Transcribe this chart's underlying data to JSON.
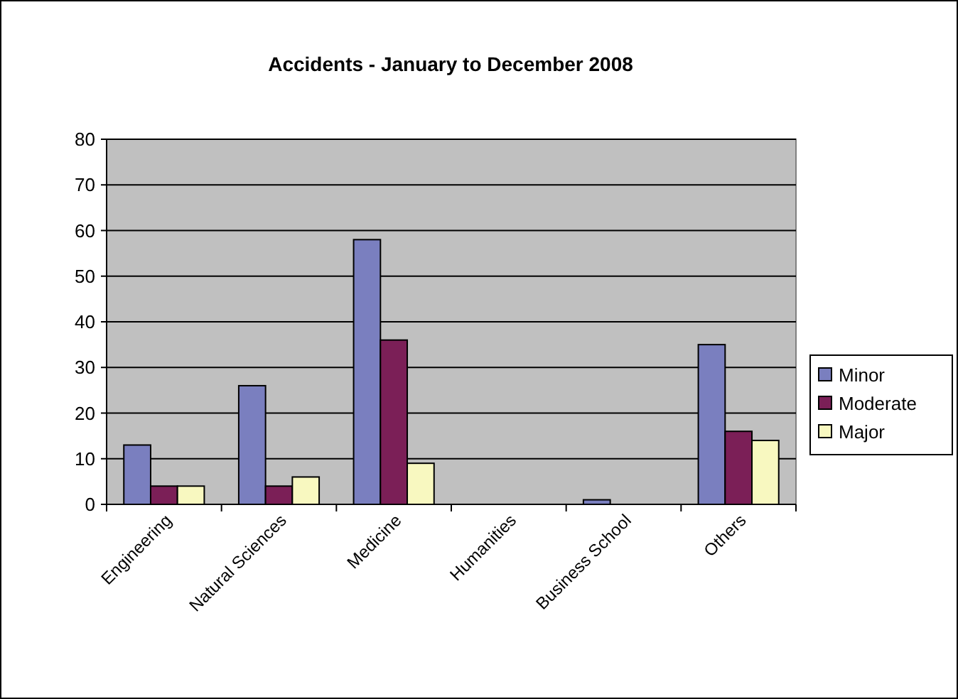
{
  "chart_data": {
    "type": "bar",
    "title": "Accidents - January to December  2008",
    "categories": [
      "Engineering",
      "Natural Sciences",
      "Medicine",
      "Humanities",
      "Business School",
      "Others"
    ],
    "series": [
      {
        "name": "Minor",
        "color": "#7a7fbf",
        "values": [
          13,
          26,
          58,
          0,
          1,
          35
        ]
      },
      {
        "name": "Moderate",
        "color": "#7b1f57",
        "values": [
          4,
          4,
          36,
          0,
          0,
          16
        ]
      },
      {
        "name": "Major",
        "color": "#f8f8c0",
        "values": [
          4,
          6,
          9,
          0,
          0,
          14
        ]
      }
    ],
    "ylim": [
      0,
      80
    ],
    "yticks": [
      0,
      10,
      20,
      30,
      40,
      50,
      60,
      70,
      80
    ],
    "grid": "y",
    "legend": "right"
  }
}
